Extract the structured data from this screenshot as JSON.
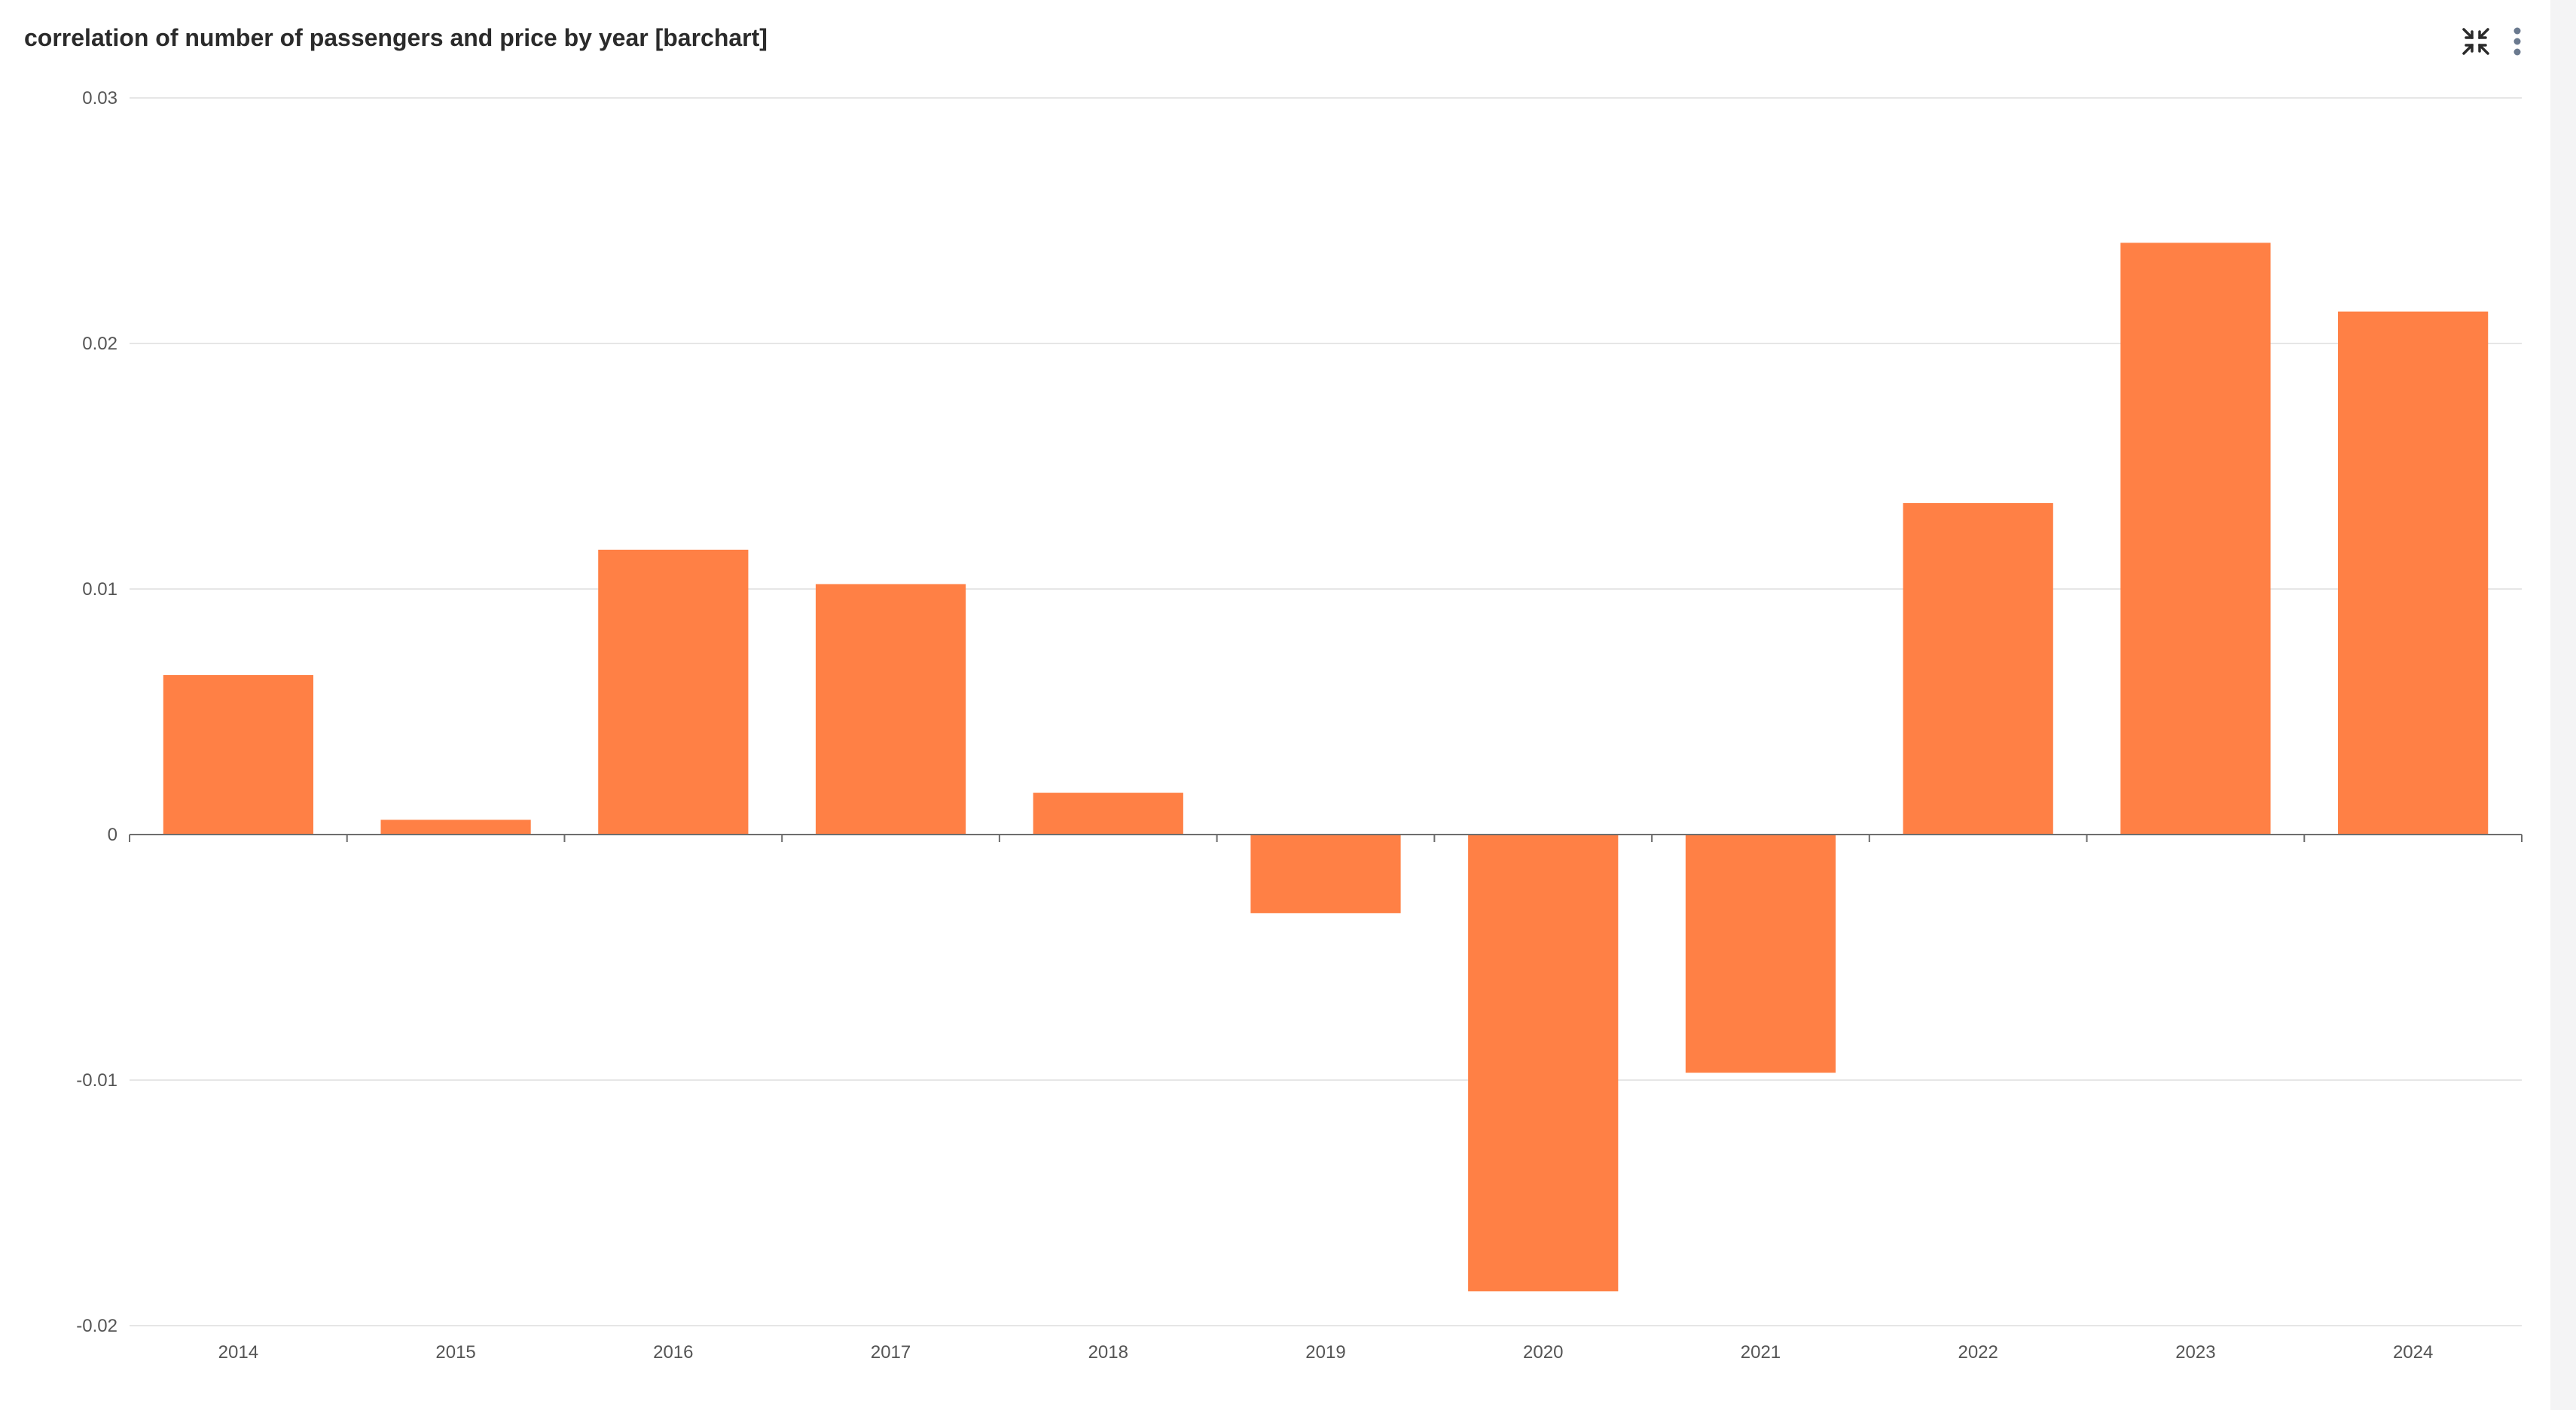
{
  "header": {
    "title": "correlation of number of passengers and price by year [barchart]",
    "icons": [
      "collapse-icon",
      "more-vertical-icon"
    ]
  },
  "colors": {
    "bar": "#ff8045",
    "grid": "#e6e6e6",
    "axis": "#6e6e6e",
    "text": "#555555"
  },
  "chart_data": {
    "type": "bar",
    "title": "correlation of number of passengers and price by year [barchart]",
    "xlabel": "",
    "ylabel": "",
    "categories": [
      "2014",
      "2015",
      "2016",
      "2017",
      "2018",
      "2019",
      "2020",
      "2021",
      "2022",
      "2023",
      "2024"
    ],
    "values": [
      0.0065,
      0.0006,
      0.0116,
      0.0102,
      0.0017,
      -0.0032,
      -0.0186,
      -0.0097,
      0.0135,
      0.0241,
      0.0213
    ],
    "ylim": [
      -0.02,
      0.03
    ],
    "yticks": [
      -0.02,
      -0.01,
      0,
      0.01,
      0.02,
      0.03
    ],
    "ytick_labels": [
      "-0.02",
      "-0.01",
      "0",
      "0.01",
      "0.02",
      "0.03"
    ],
    "grid": true,
    "legend": "none"
  }
}
